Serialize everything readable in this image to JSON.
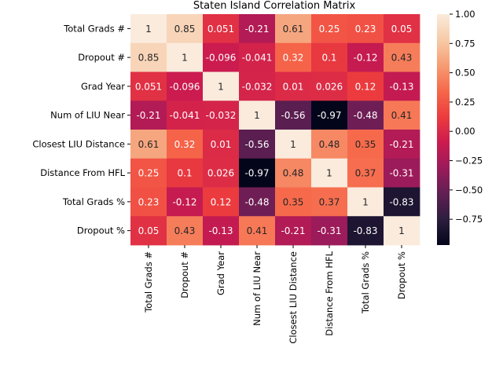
{
  "chart_data": {
    "type": "heatmap",
    "title": "Staten Island Correlation Matrix",
    "rows": [
      "Total Grads #",
      "Dropout #",
      "Grad Year",
      "Num of LIU Near",
      "Closest LIU Distance",
      "Distance From HFL",
      "Total Grads %",
      "Dropout %"
    ],
    "columns": [
      "Total Grads #",
      "Dropout #",
      "Grad Year",
      "Num of LIU Near",
      "Closest LIU Distance",
      "Distance From HFL",
      "Total Grads %",
      "Dropout %"
    ],
    "values": [
      [
        1,
        0.85,
        0.051,
        -0.21,
        0.61,
        0.25,
        0.23,
        0.05
      ],
      [
        0.85,
        1,
        -0.096,
        -0.041,
        0.32,
        0.1,
        -0.12,
        0.43
      ],
      [
        0.051,
        -0.096,
        1,
        -0.032,
        0.01,
        0.026,
        0.12,
        -0.13
      ],
      [
        -0.21,
        -0.041,
        -0.032,
        1,
        -0.56,
        -0.97,
        -0.48,
        0.41
      ],
      [
        0.61,
        0.32,
        0.01,
        -0.56,
        1,
        0.48,
        0.35,
        -0.21
      ],
      [
        0.25,
        0.1,
        0.026,
        -0.97,
        0.48,
        1,
        0.37,
        -0.31
      ],
      [
        0.23,
        -0.12,
        0.12,
        -0.48,
        0.35,
        0.37,
        1,
        -0.83
      ],
      [
        0.05,
        0.43,
        -0.13,
        0.41,
        -0.21,
        -0.31,
        -0.83,
        1
      ]
    ],
    "labels": [
      [
        "1",
        "0.85",
        "0.051",
        "-0.21",
        "0.61",
        "0.25",
        "0.23",
        "0.05"
      ],
      [
        "0.85",
        "1",
        "-0.096",
        "-0.041",
        "0.32",
        "0.1",
        "-0.12",
        "0.43"
      ],
      [
        "0.051",
        "-0.096",
        "1",
        "-0.032",
        "0.01",
        "0.026",
        "0.12",
        "-0.13"
      ],
      [
        "-0.21",
        "-0.041",
        "-0.032",
        "1",
        "-0.56",
        "-0.97",
        "-0.48",
        "0.41"
      ],
      [
        "0.61",
        "0.32",
        "0.01",
        "-0.56",
        "1",
        "0.48",
        "0.35",
        "-0.21"
      ],
      [
        "0.25",
        "0.1",
        "0.026",
        "-0.97",
        "0.48",
        "1",
        "0.37",
        "-0.31"
      ],
      [
        "0.23",
        "-0.12",
        "0.12",
        "-0.48",
        "0.35",
        "0.37",
        "1",
        "-0.83"
      ],
      [
        "0.05",
        "0.43",
        "-0.13",
        "0.41",
        "-0.21",
        "-0.31",
        "-0.83",
        "1"
      ]
    ],
    "colormap": "rocket",
    "colorbar": {
      "range": [
        -0.97,
        1
      ],
      "ticks": [
        1.0,
        0.75,
        0.5,
        0.25,
        0.0,
        -0.25,
        -0.5,
        -0.75
      ],
      "tick_labels": [
        "1.00",
        "0.75",
        "0.50",
        "0.25",
        "0.00",
        "−0.25",
        "−0.50",
        "−0.75"
      ]
    },
    "colors": [
      "#03051a",
      "#2c1e3e",
      "#611f53",
      "#9b1b5a",
      "#cb1b4f",
      "#ec3c3e",
      "#f6684a",
      "#f69c73",
      "#f7cba8",
      "#faebdd"
    ]
  }
}
